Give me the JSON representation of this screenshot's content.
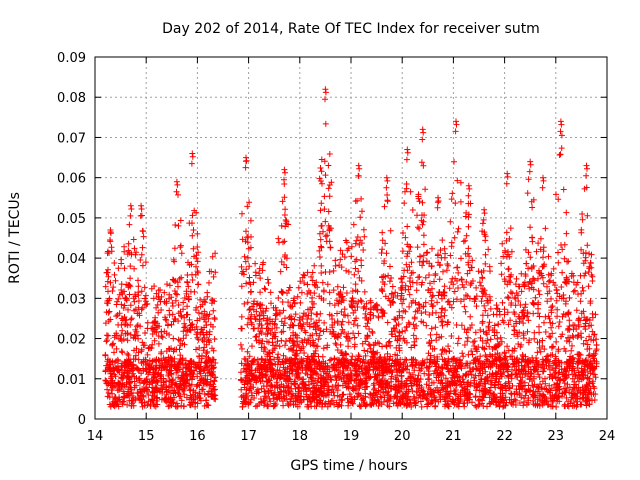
{
  "chart_data": {
    "type": "scatter",
    "title": "Day 202 of 2014, Rate Of TEC Index for receiver sutm",
    "xlabel": "GPS time / hours",
    "ylabel": "ROTI / TECUs",
    "xlim": [
      14,
      24
    ],
    "ylim": [
      0,
      0.09
    ],
    "xticks": [
      14,
      15,
      16,
      17,
      18,
      19,
      20,
      21,
      22,
      23,
      24
    ],
    "xtick_labels": [
      "14",
      "15",
      "16",
      "17",
      "18",
      "19",
      "20",
      "21",
      "22",
      "23",
      "24"
    ],
    "yticks": [
      0,
      0.01,
      0.02,
      0.03,
      0.04,
      0.05,
      0.06,
      0.07,
      0.08,
      0.09
    ],
    "ytick_labels": [
      "0",
      "0.01",
      "0.02",
      "0.03",
      "0.04",
      "0.05",
      "0.06",
      "0.07",
      "0.08",
      "0.09"
    ],
    "grid": true,
    "marker": "plus",
    "series": [
      {
        "name": "ROTI",
        "color": "#ff0000",
        "segments": [
          {
            "x_start": 14.2,
            "x_end": 16.35
          },
          {
            "x_start": 16.85,
            "x_end": 23.8
          }
        ],
        "x_peaks": [
          14.3,
          14.7,
          14.9,
          15.6,
          15.9,
          16.95,
          17.7,
          18.5,
          19.15,
          19.7,
          20.1,
          20.4,
          20.7,
          21.05,
          21.3,
          21.6,
          22.05,
          22.5,
          22.75,
          23.1,
          23.6
        ],
        "y_peaks": [
          0.047,
          0.053,
          0.053,
          0.059,
          0.066,
          0.065,
          0.062,
          0.082,
          0.063,
          0.06,
          0.067,
          0.072,
          0.055,
          0.074,
          0.058,
          0.052,
          0.061,
          0.064,
          0.06,
          0.074,
          0.063
        ]
      }
    ]
  }
}
